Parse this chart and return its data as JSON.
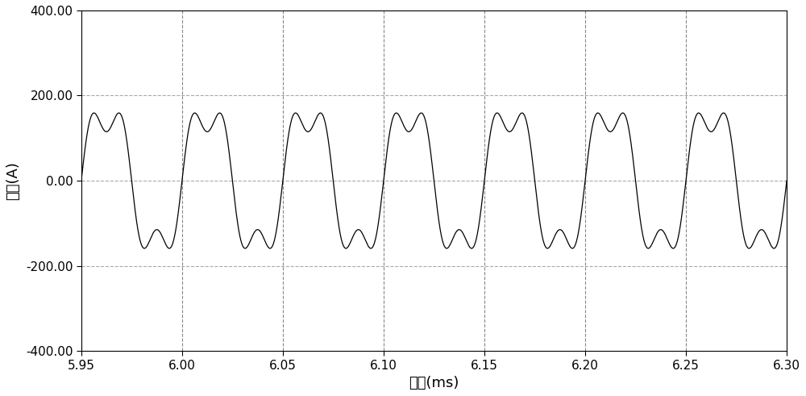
{
  "xlabel": "时间(ms)",
  "ylabel": "电流(A)",
  "xlim": [
    5.95,
    6.3
  ],
  "ylim": [
    -400.0,
    400.0
  ],
  "yticks": [
    -400.0,
    -200.0,
    0.0,
    200.0,
    400.0
  ],
  "xticks": [
    5.95,
    6.0,
    6.05,
    6.1,
    6.15,
    6.2,
    6.25,
    6.3
  ],
  "grid_color_h": "#aaaaaa",
  "grid_color_v": "#888888",
  "line_color": "#000000",
  "background_color": "#ffffff",
  "f1_hz": 20000,
  "f2_hz": 60000,
  "A1": 170,
  "A2": 55,
  "phase2": 0.0,
  "t_start_ms": 5.95,
  "t_end_ms": 6.3,
  "n_points": 8000
}
